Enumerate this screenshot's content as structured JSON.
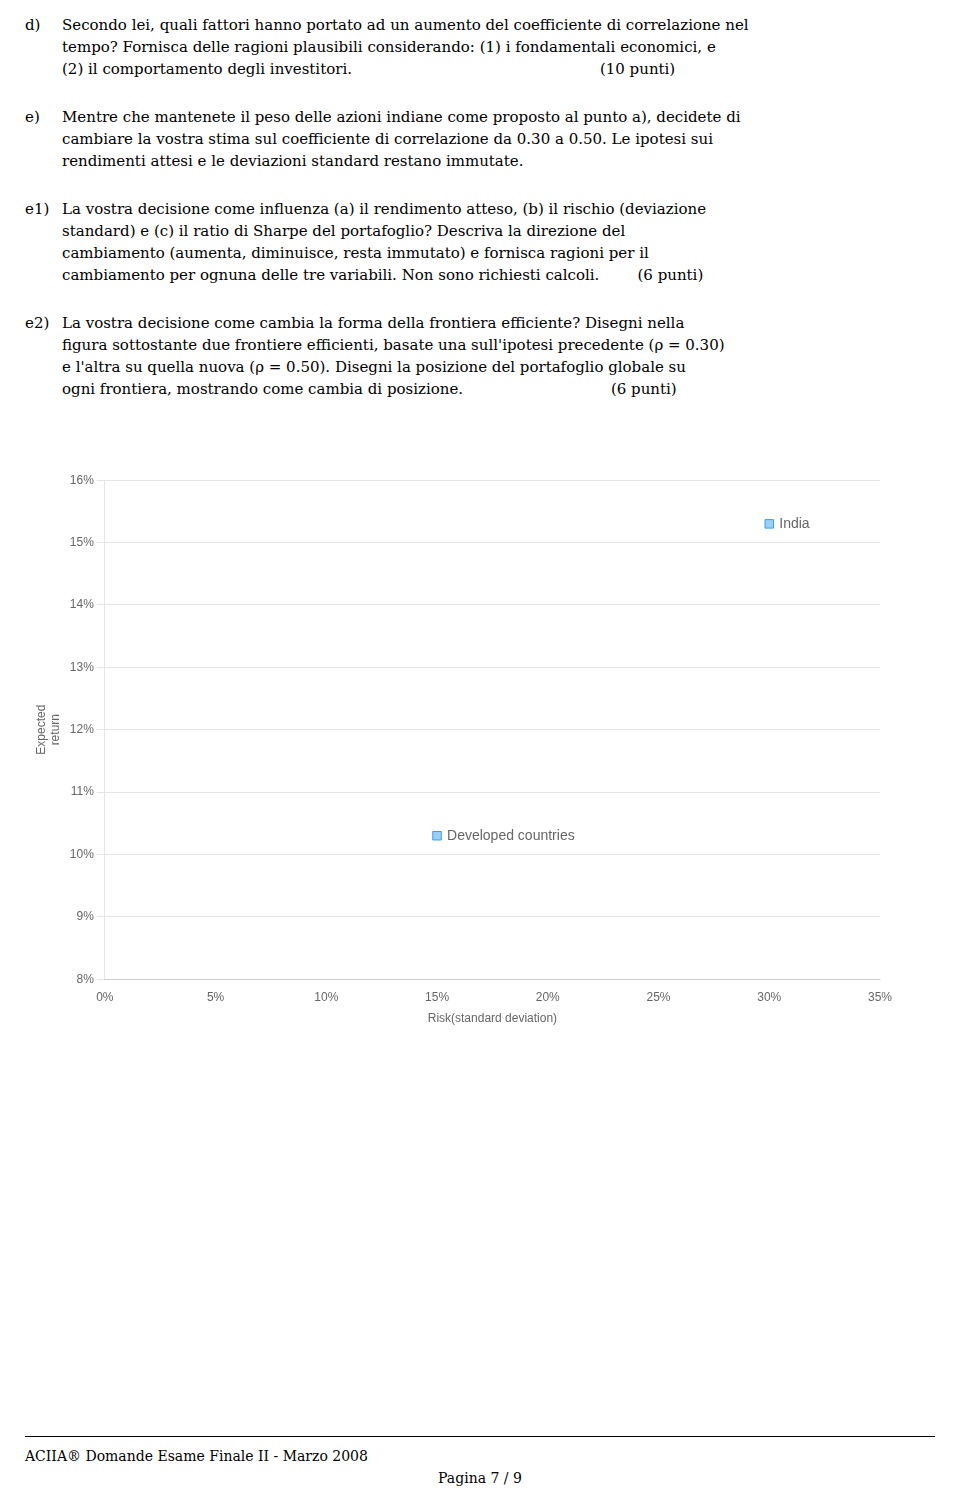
{
  "page": {
    "sections": [
      {
        "label": "d)",
        "lines": [
          "Secondo lei, quali fattori hanno portato ad un aumento del coefficiente di correlazione nel",
          "tempo? Fornisca delle ragioni plausibili considerando: (1) i fondamentali economici, e",
          "(2) il comportamento degli investitori.                                                    (10 punti)"
        ]
      },
      {
        "label": "e)",
        "lines": [
          "Mentre che mantenete il peso delle azioni indiane come proposto al punto a), decidete di",
          "cambiare la vostra stima sul coefficiente di correlazione da 0.30 a 0.50. Le ipotesi sui",
          "rendimenti attesi e le deviazioni standard restano immutate."
        ]
      },
      {
        "label": "e1)",
        "lines": [
          "La vostra decisione come influenza (a) il rendimento atteso, (b) il rischio (deviazione",
          "standard) e (c) il ratio di Sharpe del portafoglio? Descriva la direzione del",
          "cambiamento (aumenta, diminuisce, resta immutato) e fornisca ragioni per il",
          "cambiamento per ognuna delle tre variabili. Non sono richiesti calcoli.        (6 punti)"
        ]
      },
      {
        "label": "e2)",
        "lines": [
          "La vostra decisione come cambia la forma della frontiera efficiente? Disegni nella",
          "figura sottostante due frontiere efficienti, basate una sull'ipotesi precedente (ρ = 0.30)",
          "e l'altra su quella nuova (ρ = 0.50). Disegni la posizione del portafoglio globale su",
          "ogni frontiera, mostrando come cambia di posizione.                               (6 punti)"
        ]
      }
    ],
    "footer": "ACIIA® Domande Esame Finale II - Marzo 2008",
    "page_number": "Pagina 7 / 9"
  },
  "chart_data": {
    "type": "scatter",
    "x": [
      0.3,
      0.15
    ],
    "values": [
      0.153,
      0.103
    ],
    "marker": "square",
    "annotations": [
      {
        "text": "India",
        "x": 0.3,
        "y": 0.153
      },
      {
        "text": "Developed countries",
        "x": 0.15,
        "y": 0.103
      }
    ],
    "xlabel": "Risk(standard deviation)",
    "ylabel": [
      "Expected",
      "return"
    ],
    "xlim": [
      0.0,
      0.35
    ],
    "ylim": [
      0.08,
      0.16
    ],
    "xticks": [
      {
        "value": 0.0,
        "label": "0%"
      },
      {
        "value": 0.05,
        "label": "5%"
      },
      {
        "value": 0.1,
        "label": "10%"
      },
      {
        "value": 0.15,
        "label": "15%"
      },
      {
        "value": 0.2,
        "label": "20%"
      },
      {
        "value": 0.25,
        "label": "25%"
      },
      {
        "value": 0.3,
        "label": "30%"
      },
      {
        "value": 0.35,
        "label": "35%"
      }
    ],
    "yticks": [
      {
        "value": 0.08,
        "label": "8%"
      },
      {
        "value": 0.09,
        "label": "9%"
      },
      {
        "value": 0.1,
        "label": "10%"
      },
      {
        "value": 0.11,
        "label": "11%"
      },
      {
        "value": 0.12,
        "label": "12%"
      },
      {
        "value": 0.13,
        "label": "13%"
      },
      {
        "value": 0.14,
        "label": "14%"
      },
      {
        "value": 0.15,
        "label": "15%"
      },
      {
        "value": 0.16,
        "label": "16%"
      }
    ],
    "grid": "y"
  }
}
